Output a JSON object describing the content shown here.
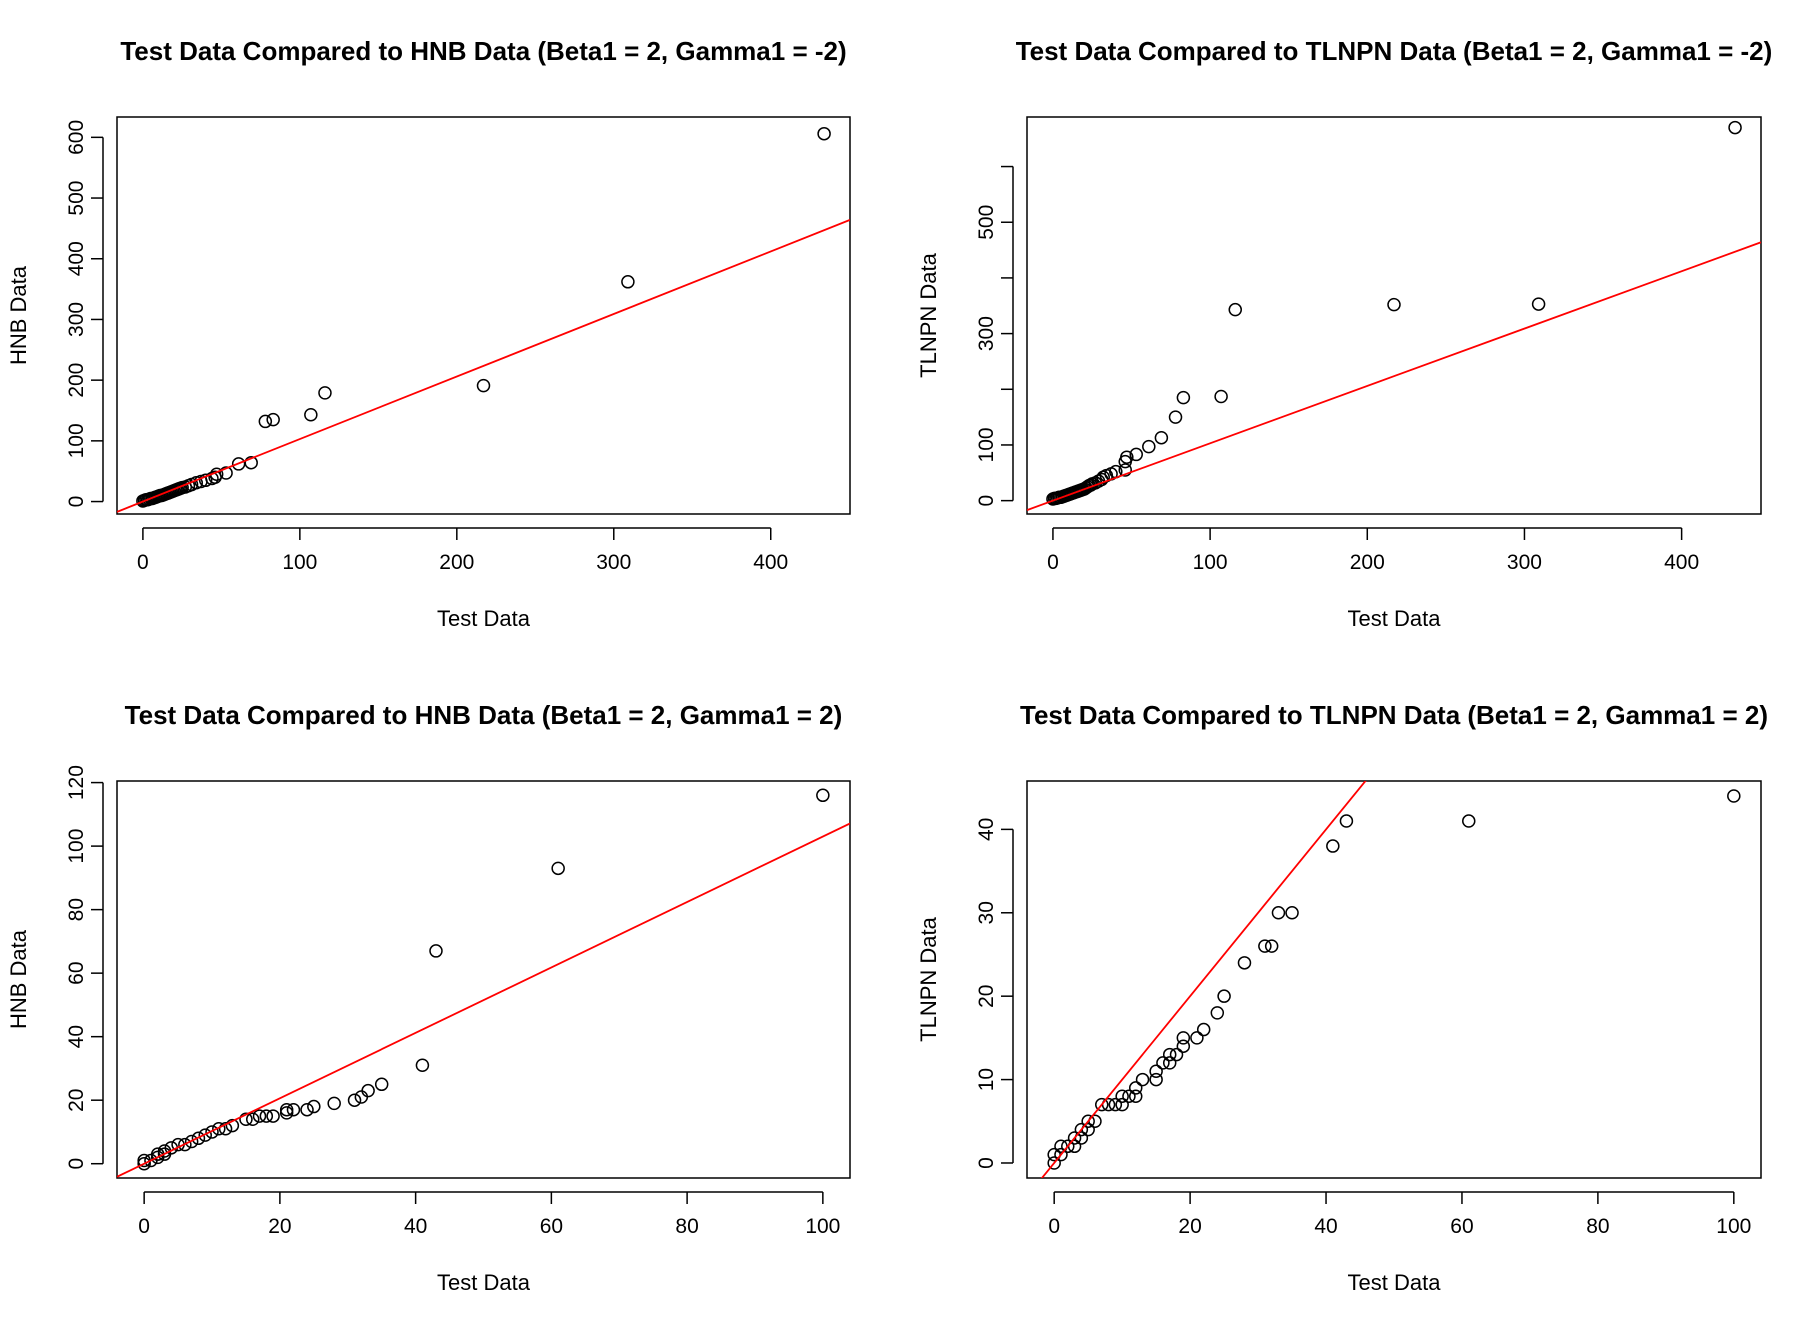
{
  "colors": {
    "points": "#000000",
    "fit_line": "#ff0000",
    "frame": "#000000"
  },
  "chart_data": [
    {
      "type": "scatter",
      "title": "Test Data Compared to HNB Data (Beta1 = 2, Gamma1 = -2)",
      "xlabel": "Test Data",
      "ylabel": "HNB Data",
      "xlim": [
        -16.5,
        450.5
      ],
      "ylim": [
        -20.5,
        633.5
      ],
      "xticks": [
        0,
        100,
        200,
        300,
        400
      ],
      "yticks": [
        0,
        100,
        200,
        300,
        400,
        500,
        600
      ],
      "line": {
        "intercept": 0,
        "slope": 1.03
      },
      "x": [
        0,
        1,
        2,
        3,
        4,
        5,
        6,
        7,
        8,
        9,
        10,
        11,
        12,
        13,
        14,
        15,
        16,
        17,
        18,
        19,
        20,
        21,
        22,
        23,
        24,
        25,
        27,
        29,
        31,
        34,
        37,
        40,
        44,
        46,
        47,
        53,
        61,
        69,
        78,
        83,
        107,
        116,
        217,
        309,
        434
      ],
      "y": [
        1,
        2,
        3,
        3,
        4,
        5,
        5,
        6,
        7,
        8,
        9,
        10,
        10,
        11,
        12,
        13,
        14,
        15,
        16,
        17,
        18,
        19,
        20,
        21,
        22,
        23,
        24,
        26,
        28,
        31,
        33,
        35,
        38,
        40,
        45,
        47,
        62,
        64,
        132,
        135,
        143,
        179,
        191,
        362,
        606
      ]
    },
    {
      "type": "scatter",
      "title": "Test Data Compared to TLNPN Data (Beta1 = 2, Gamma1 = -2)",
      "xlabel": "Test Data",
      "ylabel": "TLNPN Data",
      "xlim": [
        -16.5,
        450.5
      ],
      "ylim": [
        -24,
        689
      ],
      "xticks": [
        0,
        100,
        200,
        300,
        400
      ],
      "yticks": [
        0,
        100,
        300,
        500
      ],
      "yticks_minor": [
        200,
        400,
        600
      ],
      "line": {
        "intercept": 0,
        "slope": 1.03
      },
      "x": [
        0,
        1,
        2,
        3,
        4,
        5,
        6,
        7,
        8,
        9,
        10,
        11,
        12,
        13,
        14,
        15,
        16,
        17,
        18,
        19,
        20,
        21,
        22,
        23,
        24,
        25,
        27,
        29,
        31,
        32,
        34,
        37,
        40,
        46,
        46,
        47,
        53,
        61,
        69,
        78,
        83,
        107,
        116,
        217,
        309,
        434
      ],
      "y": [
        3,
        4,
        4,
        5,
        6,
        6,
        7,
        8,
        9,
        10,
        11,
        12,
        13,
        14,
        15,
        16,
        17,
        18,
        19,
        20,
        21,
        23,
        25,
        27,
        28,
        30,
        32,
        35,
        38,
        42,
        45,
        48,
        52,
        55,
        70,
        78,
        83,
        97,
        113,
        150,
        185,
        187,
        343,
        352,
        353,
        670
      ]
    },
    {
      "type": "scatter",
      "title": "Test Data Compared to HNB Data (Beta1 = 2, Gamma1 = 2)",
      "xlabel": "Test Data",
      "ylabel": "HNB Data",
      "xlim": [
        -4,
        104
      ],
      "ylim": [
        -4.5,
        120.5
      ],
      "xticks": [
        0,
        20,
        40,
        60,
        80,
        100
      ],
      "yticks": [
        0,
        20,
        40,
        60,
        80,
        100,
        120
      ],
      "line": {
        "intercept": 0,
        "slope": 1.03
      },
      "x": [
        0,
        0,
        1,
        2,
        2,
        3,
        3,
        4,
        5,
        6,
        7,
        8,
        9,
        10,
        11,
        12,
        13,
        15,
        16,
        17,
        18,
        19,
        21,
        21,
        22,
        24,
        25,
        28,
        31,
        32,
        33,
        35,
        41,
        43,
        61,
        100
      ],
      "y": [
        0,
        1,
        1,
        2,
        3,
        3,
        4,
        5,
        6,
        6,
        7,
        8,
        9,
        10,
        11,
        11,
        12,
        14,
        14,
        15,
        15,
        15,
        16,
        17,
        17,
        17,
        18,
        19,
        20,
        21,
        23,
        25,
        31,
        67,
        93,
        116
      ]
    },
    {
      "type": "scatter",
      "title": "Test Data Compared to TLNPN Data (Beta1 = 2, Gamma1 = 2)",
      "xlabel": "Test Data",
      "ylabel": "TLNPN Data",
      "xlim": [
        -4,
        104
      ],
      "ylim": [
        -1.8,
        45.8
      ],
      "xticks": [
        0,
        20,
        40,
        60,
        80,
        100
      ],
      "yticks": [
        0,
        10,
        20,
        30,
        40
      ],
      "line": {
        "intercept": 0,
        "slope": 1.0
      },
      "x": [
        0,
        0,
        1,
        1,
        2,
        3,
        3,
        4,
        4,
        5,
        5,
        6,
        7,
        8,
        9,
        10,
        10,
        11,
        12,
        12,
        13,
        15,
        15,
        16,
        17,
        17,
        18,
        19,
        19,
        21,
        22,
        24,
        25,
        28,
        31,
        32,
        33,
        35,
        41,
        43,
        61,
        100
      ],
      "y": [
        0,
        1,
        1,
        2,
        2,
        2,
        3,
        3,
        4,
        4,
        5,
        5,
        7,
        7,
        7,
        7,
        8,
        8,
        8,
        9,
        10,
        10,
        11,
        12,
        12,
        13,
        13,
        14,
        15,
        15,
        16,
        18,
        20,
        24,
        26,
        26,
        30,
        30,
        38,
        41,
        41,
        44
      ]
    }
  ]
}
